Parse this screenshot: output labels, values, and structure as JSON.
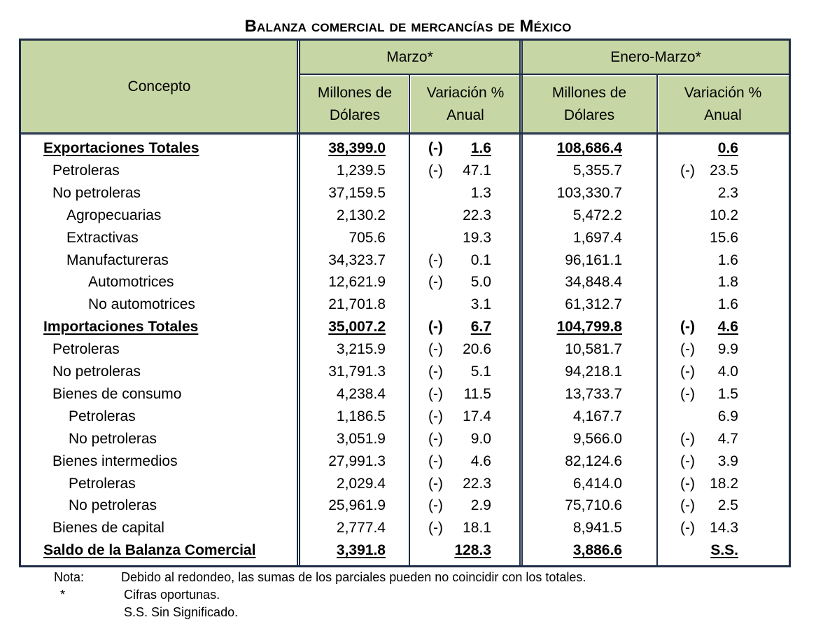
{
  "title": "Balanza comercial de mercancías de México",
  "header": {
    "concepto": "Concepto",
    "group1": "Marzo*",
    "group2": "Enero-Marzo*",
    "col_millones": "Millones de Dólares",
    "col_variacion": "Variación % Anual"
  },
  "rows": [
    {
      "label": "Exportaciones Totales",
      "level": 0,
      "bold": true,
      "m_val": "38,399.0",
      "m_sign": "(-)",
      "m_var": "1.6",
      "e_val": "108,686.4",
      "e_sign": "",
      "e_var": "0.6"
    },
    {
      "label": "Petroleras",
      "level": 1,
      "m_val": "1,239.5",
      "m_sign": "(-)",
      "m_var": "47.1",
      "e_val": "5,355.7",
      "e_sign": "(-)",
      "e_var": "23.5"
    },
    {
      "label": "No petroleras",
      "level": 1,
      "m_val": "37,159.5",
      "m_sign": "",
      "m_var": "1.3",
      "e_val": "103,330.7",
      "e_sign": "",
      "e_var": "2.3"
    },
    {
      "label": "Agropecuarias",
      "level": 2,
      "m_val": "2,130.2",
      "m_sign": "",
      "m_var": "22.3",
      "e_val": "5,472.2",
      "e_sign": "",
      "e_var": "10.2"
    },
    {
      "label": "Extractivas",
      "level": 2,
      "m_val": "705.6",
      "m_sign": "",
      "m_var": "19.3",
      "e_val": "1,697.4",
      "e_sign": "",
      "e_var": "15.6"
    },
    {
      "label": "Manufactureras",
      "level": 2,
      "m_val": "34,323.7",
      "m_sign": "(-)",
      "m_var": "0.1",
      "e_val": "96,161.1",
      "e_sign": "",
      "e_var": "1.6"
    },
    {
      "label": "Automotrices",
      "level": 3,
      "m_val": "12,621.9",
      "m_sign": "(-)",
      "m_var": "5.0",
      "e_val": "34,848.4",
      "e_sign": "",
      "e_var": "1.8"
    },
    {
      "label": "No automotrices",
      "level": 3,
      "m_val": "21,701.8",
      "m_sign": "",
      "m_var": "3.1",
      "e_val": "61,312.7",
      "e_sign": "",
      "e_var": "1.6"
    },
    {
      "label": "Importaciones Totales",
      "level": 0,
      "bold": true,
      "m_val": "35,007.2",
      "m_sign": "(-)",
      "m_var": "6.7",
      "e_val": "104,799.8",
      "e_sign": "(-)",
      "e_var": "4.6"
    },
    {
      "label": "Petroleras",
      "level": 1,
      "m_val": "3,215.9",
      "m_sign": "(-)",
      "m_var": "20.6",
      "e_val": "10,581.7",
      "e_sign": "(-)",
      "e_var": "9.9"
    },
    {
      "label": "No petroleras",
      "level": 1,
      "m_val": "31,791.3",
      "m_sign": "(-)",
      "m_var": "5.1",
      "e_val": "94,218.1",
      "e_sign": "(-)",
      "e_var": "4.0"
    },
    {
      "label": "Bienes de consumo",
      "level": 1,
      "m_val": "4,238.4",
      "m_sign": "(-)",
      "m_var": "11.5",
      "e_val": "13,733.7",
      "e_sign": "(-)",
      "e_var": "1.5"
    },
    {
      "label": "Petroleras",
      "level": 2,
      "m_val": "1,186.5",
      "m_sign": "(-)",
      "m_var": "17.4",
      "e_val": "4,167.7",
      "e_sign": "",
      "e_var": "6.9"
    },
    {
      "label": "No petroleras",
      "level": 2,
      "m_val": "3,051.9",
      "m_sign": "(-)",
      "m_var": "9.0",
      "e_val": "9,566.0",
      "e_sign": "(-)",
      "e_var": "4.7"
    },
    {
      "label": "Bienes intermedios",
      "level": 1,
      "m_val": "27,991.3",
      "m_sign": "(-)",
      "m_var": "4.6",
      "e_val": "82,124.6",
      "e_sign": "(-)",
      "e_var": "3.9"
    },
    {
      "label": "Petroleras",
      "level": 2,
      "m_val": "2,029.4",
      "m_sign": "(-)",
      "m_var": "22.3",
      "e_val": "6,414.0",
      "e_sign": "(-)",
      "e_var": "18.2"
    },
    {
      "label": "No petroleras",
      "level": 2,
      "m_val": "25,961.9",
      "m_sign": "(-)",
      "m_var": "2.9",
      "e_val": "75,710.6",
      "e_sign": "(-)",
      "e_var": "2.5"
    },
    {
      "label": "Bienes de capital",
      "level": 1,
      "m_val": "2,777.4",
      "m_sign": "(-)",
      "m_var": "18.1",
      "e_val": "8,941.5",
      "e_sign": "(-)",
      "e_var": "14.3"
    },
    {
      "label": "Saldo de la Balanza Comercial",
      "level": 0,
      "bold": true,
      "m_val": "3,391.8",
      "m_sign": "",
      "m_var": "128.3",
      "e_val": "3,886.6",
      "e_sign": "",
      "e_var": "S.S."
    }
  ],
  "notes": [
    {
      "mark": "Nota:",
      "text": "Debido al redondeo, las sumas de los parciales pueden no coincidir con los totales."
    },
    {
      "mark": "*",
      "text": "Cifras oportunas."
    },
    {
      "mark": "",
      "text": "S.S. Sin Significado."
    }
  ],
  "colors": {
    "header_bg": "#c7d6a5",
    "border": "#1f2d45"
  }
}
